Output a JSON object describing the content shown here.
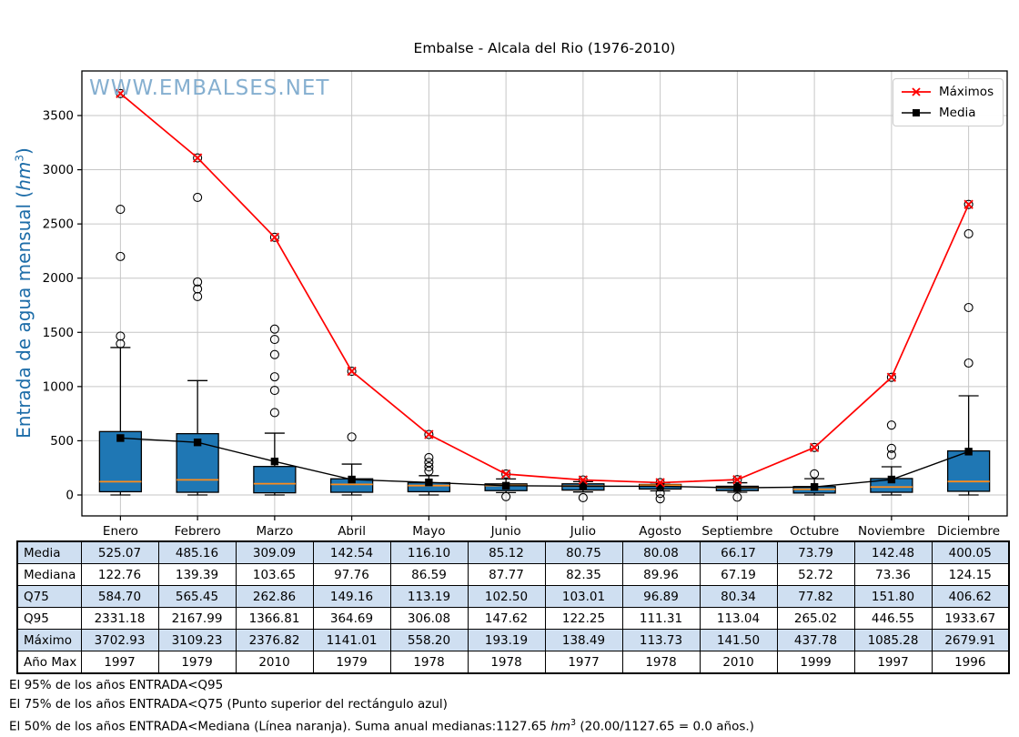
{
  "title": "Embalse - Alcala del Rio (1976-2010)",
  "watermark": "WWW.EMBALSES.NET",
  "y_axis_label": {
    "prefix": "Entrada de agua mensual (",
    "unit": "hm",
    "exponent": "3",
    "suffix": ")"
  },
  "legend": {
    "items": [
      {
        "label": "Máximos"
      },
      {
        "label": "Media"
      }
    ]
  },
  "chart_data": {
    "type": "boxplot",
    "title": "Embalse - Alcala del Rio (1976-2010)",
    "ylabel": "Entrada de agua mensual (hm3)",
    "categories": [
      "Enero",
      "Febrero",
      "Marzo",
      "Abril",
      "Mayo",
      "Junio",
      "Julio",
      "Agosto",
      "Septiembre",
      "Octubre",
      "Noviembre",
      "Diciembre"
    ],
    "y_ticks": [
      0,
      500,
      1000,
      1500,
      2000,
      2500,
      3000,
      3500
    ],
    "ylim": [
      -193,
      3911
    ],
    "grid": true,
    "legend_position": "upper right",
    "colors": {
      "box_fill": "#1f77b4",
      "median": "#ff8c1a",
      "maximos": "#ff0000",
      "media": "#000000",
      "grid": "#c6c6c6",
      "axis": "#000000"
    },
    "series": [
      {
        "name": "Máximos",
        "type": "line",
        "marker": "x",
        "color": "#ff0000",
        "values": [
          3702.93,
          3109.23,
          2376.82,
          1141.01,
          558.2,
          193.19,
          138.49,
          113.73,
          141.5,
          437.78,
          1085.28,
          2679.91
        ]
      },
      {
        "name": "Media",
        "type": "line",
        "marker": "square",
        "color": "#000000",
        "values": [
          525.07,
          485.16,
          309.09,
          142.54,
          116.1,
          85.12,
          80.75,
          80.08,
          66.17,
          73.79,
          142.48,
          400.05
        ]
      }
    ],
    "boxes": [
      {
        "month": "Enero",
        "q25": 30,
        "median": 122.76,
        "q75": 584.7,
        "whisker_low": 0,
        "whisker_high": 1360,
        "outliers": [
          1395,
          1465,
          2200,
          2635,
          3702.93
        ]
      },
      {
        "month": "Febrero",
        "q25": 25,
        "median": 139.39,
        "q75": 565.45,
        "whisker_low": 0,
        "whisker_high": 1055,
        "outliers": [
          1830,
          1900,
          1965,
          2745,
          3109.23
        ]
      },
      {
        "month": "Marzo",
        "q25": 20,
        "median": 103.65,
        "q75": 262.86,
        "whisker_low": 0,
        "whisker_high": 570,
        "outliers": [
          760,
          965,
          1090,
          1295,
          1435,
          1530,
          2376.82
        ]
      },
      {
        "month": "Abril",
        "q25": 25,
        "median": 97.76,
        "q75": 149.16,
        "whisker_low": 0,
        "whisker_high": 285,
        "outliers": [
          535,
          1141.01
        ]
      },
      {
        "month": "Mayo",
        "q25": 30,
        "median": 86.59,
        "q75": 113.19,
        "whisker_low": 0,
        "whisker_high": 178,
        "outliers": [
          220,
          260,
          300,
          345,
          558.2
        ]
      },
      {
        "month": "Junio",
        "q25": 40,
        "median": 87.77,
        "q75": 102.5,
        "whisker_low": 22,
        "whisker_high": 148,
        "outliers": [
          -15,
          193.19
        ]
      },
      {
        "month": "Julio",
        "q25": 45,
        "median": 82.35,
        "q75": 103.01,
        "whisker_low": 28,
        "whisker_high": 123,
        "outliers": [
          -25,
          138.49
        ]
      },
      {
        "month": "Agosto",
        "q25": 55,
        "median": 89.96,
        "q75": 96.89,
        "whisker_low": 38,
        "whisker_high": 112,
        "outliers": [
          15,
          -35,
          113.73
        ]
      },
      {
        "month": "Septiembre",
        "q25": 40,
        "median": 67.19,
        "q75": 80.34,
        "whisker_low": 25,
        "whisker_high": 113,
        "outliers": [
          -20,
          141.5
        ]
      },
      {
        "month": "Octubre",
        "q25": 18,
        "median": 52.72,
        "q75": 77.82,
        "whisker_low": 0,
        "whisker_high": 150,
        "outliers": [
          195,
          437.78
        ]
      },
      {
        "month": "Noviembre",
        "q25": 25,
        "median": 73.36,
        "q75": 151.8,
        "whisker_low": 0,
        "whisker_high": 260,
        "outliers": [
          370,
          430,
          645,
          1085.28
        ]
      },
      {
        "month": "Diciembre",
        "q25": 34,
        "median": 124.15,
        "q75": 406.62,
        "whisker_low": 0,
        "whisker_high": 915,
        "outliers": [
          1217,
          1729,
          2409,
          2679.91
        ]
      }
    ]
  },
  "table": {
    "row_labels": [
      "Media",
      "Mediana",
      "Q75",
      "Q95",
      "Máximo",
      "Año Max"
    ],
    "rows": [
      [
        "525.07",
        "485.16",
        "309.09",
        "142.54",
        "116.10",
        "85.12",
        "80.75",
        "80.08",
        "66.17",
        "73.79",
        "142.48",
        "400.05"
      ],
      [
        "122.76",
        "139.39",
        "103.65",
        "97.76",
        "86.59",
        "87.77",
        "82.35",
        "89.96",
        "67.19",
        "52.72",
        "73.36",
        "124.15"
      ],
      [
        "584.70",
        "565.45",
        "262.86",
        "149.16",
        "113.19",
        "102.50",
        "103.01",
        "96.89",
        "80.34",
        "77.82",
        "151.80",
        "406.62"
      ],
      [
        "2331.18",
        "2167.99",
        "1366.81",
        "364.69",
        "306.08",
        "147.62",
        "122.25",
        "111.31",
        "113.04",
        "265.02",
        "446.55",
        "1933.67"
      ],
      [
        "3702.93",
        "3109.23",
        "2376.82",
        "1141.01",
        "558.20",
        "193.19",
        "138.49",
        "113.73",
        "141.50",
        "437.78",
        "1085.28",
        "2679.91"
      ],
      [
        "1997",
        "1979",
        "2010",
        "1979",
        "1978",
        "1978",
        "1977",
        "1978",
        "2010",
        "1999",
        "1997",
        "1996"
      ]
    ],
    "highlight_color": "#cfdff1"
  },
  "footnotes": {
    "line1": "El 95% de los años ENTRADA<Q95",
    "line2": "El 75% de los años ENTRADA<Q75 (Punto superior del rectángulo azul)",
    "line3_prefix": "El 50% de los años ENTRADA<Mediana (Línea naranja). Suma anual medianas:1127.65 ",
    "line3_unit": "hm",
    "line3_exponent": "3",
    "line3_suffix": " (20.00/1127.65 = 0.0 años.)"
  }
}
